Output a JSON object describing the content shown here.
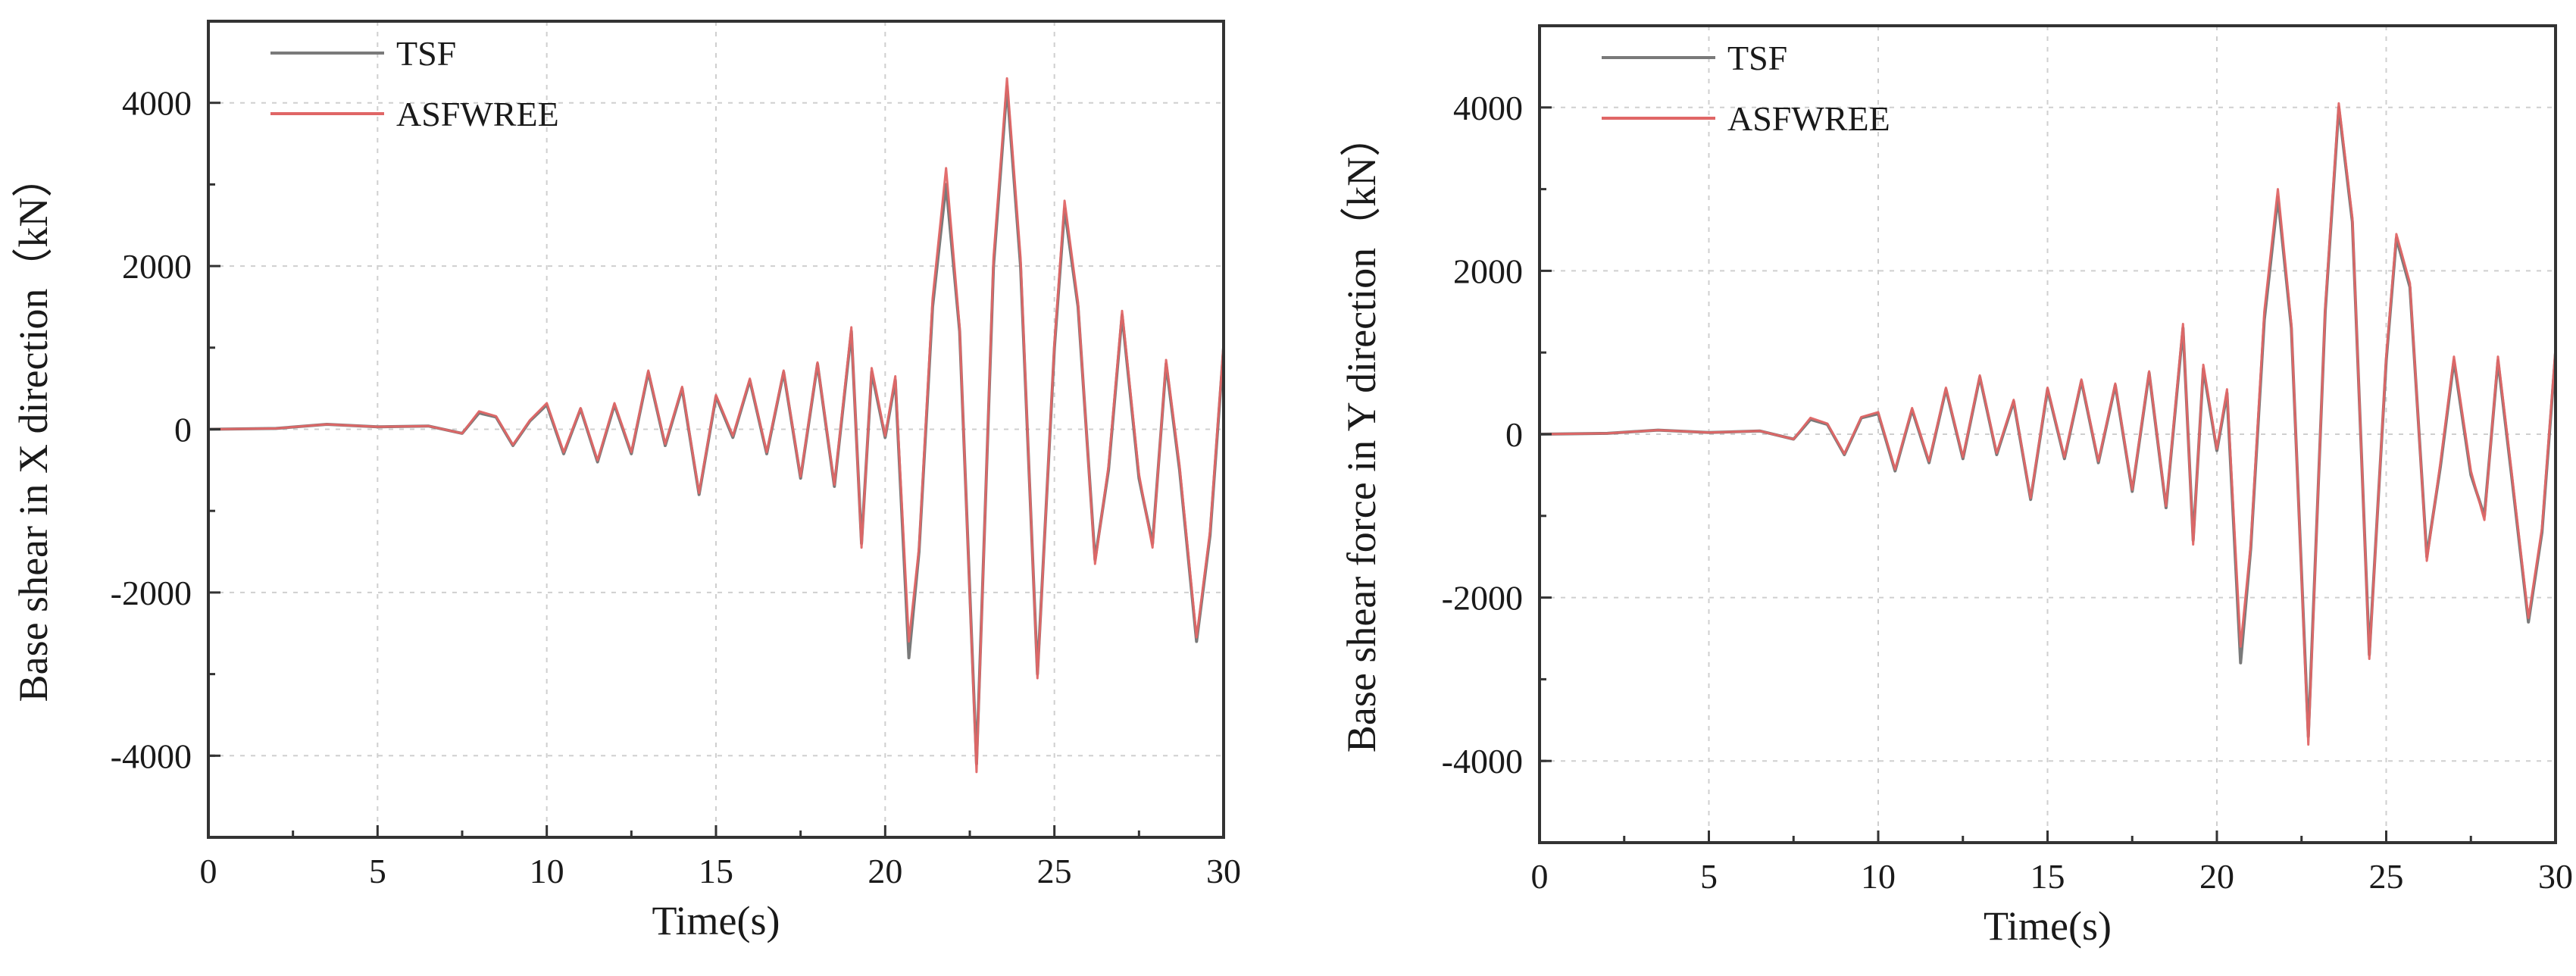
{
  "chart_data": [
    {
      "type": "line",
      "xlabel": "Time(s)",
      "ylabel": "Base shear in X direction（kN）",
      "xlim": [
        0,
        30
      ],
      "ylim": [
        -5000,
        5000
      ],
      "x_ticks": [
        "0",
        "5",
        "10",
        "15",
        "20",
        "25",
        "30"
      ],
      "y_ticks": [
        "-4000",
        "-2000",
        "0",
        "2000",
        "4000"
      ],
      "legend_position": "top-left",
      "grid": true,
      "series": [
        {
          "name": "TSF",
          "color": "#7a7a7a",
          "x": [
            0,
            2,
            3.5,
            5,
            6.5,
            7.5,
            8,
            8.5,
            9,
            9.5,
            10,
            10.5,
            11,
            11.5,
            12,
            12.5,
            13,
            13.5,
            14,
            14.5,
            15,
            15.5,
            16,
            16.5,
            17,
            17.5,
            18,
            18.5,
            19,
            19.3,
            19.6,
            20,
            20.3,
            20.7,
            21,
            21.4,
            21.8,
            22.2,
            22.7,
            23.2,
            23.6,
            24,
            24.5,
            25,
            25.3,
            25.7,
            26.2,
            26.6,
            27,
            27.5,
            27.9,
            28.3,
            28.7,
            29.2,
            29.6,
            30
          ],
          "y": [
            0,
            10,
            60,
            30,
            40,
            -50,
            200,
            150,
            -200,
            100,
            300,
            -300,
            250,
            -400,
            300,
            -300,
            700,
            -200,
            500,
            -800,
            400,
            -100,
            600,
            -300,
            700,
            -600,
            800,
            -700,
            1200,
            -1400,
            700,
            -100,
            600,
            -2800,
            -1500,
            1500,
            3000,
            1200,
            -4100,
            2000,
            4200,
            2000,
            -3000,
            1000,
            2700,
            1500,
            -1600,
            -500,
            1400,
            -600,
            -1400,
            800,
            -500,
            -2600,
            -1300,
            1000
          ]
        },
        {
          "name": "ASFWREE",
          "color": "#e06666",
          "x": [
            0,
            2,
            3.5,
            5,
            6.5,
            7.5,
            8,
            8.5,
            9,
            9.5,
            10,
            10.5,
            11,
            11.5,
            12,
            12.5,
            13,
            13.5,
            14,
            14.5,
            15,
            15.5,
            16,
            16.5,
            17,
            17.5,
            18,
            18.5,
            19,
            19.3,
            19.6,
            20,
            20.3,
            20.7,
            21,
            21.4,
            21.8,
            22.2,
            22.7,
            23.2,
            23.6,
            24,
            24.5,
            25,
            25.3,
            25.7,
            26.2,
            26.6,
            27,
            27.5,
            27.9,
            28.3,
            28.7,
            29.2,
            29.6,
            30
          ],
          "y": [
            0,
            10,
            60,
            30,
            40,
            -50,
            220,
            160,
            -190,
            110,
            320,
            -280,
            260,
            -380,
            320,
            -280,
            720,
            -180,
            520,
            -780,
            420,
            -80,
            620,
            -280,
            720,
            -580,
            820,
            -680,
            1250,
            -1450,
            750,
            -80,
            650,
            -2600,
            -1450,
            1600,
            3200,
            1250,
            -4200,
            2100,
            4300,
            2100,
            -3050,
            1050,
            2800,
            1550,
            -1650,
            -450,
            1450,
            -550,
            -1450,
            850,
            -450,
            -2550,
            -1250,
            1050
          ]
        }
      ]
    },
    {
      "type": "line",
      "xlabel": "Time(s)",
      "ylabel": "Base shear force in Y direction（kN）",
      "xlim": [
        0,
        30
      ],
      "ylim": [
        -5000,
        5000
      ],
      "x_ticks": [
        "0",
        "5",
        "10",
        "15",
        "20",
        "25",
        "30"
      ],
      "y_ticks": [
        "-4000",
        "-2000",
        "0",
        "2000",
        "4000"
      ],
      "legend_position": "top-left",
      "grid": true,
      "series": [
        {
          "name": "TSF",
          "color": "#7a7a7a",
          "x": [
            0,
            2,
            3.5,
            5,
            6.5,
            7.5,
            8,
            8.5,
            9,
            9.5,
            10,
            10.5,
            11,
            11.5,
            12,
            12.5,
            13,
            13.5,
            14,
            14.5,
            15,
            15.5,
            16,
            16.5,
            17,
            17.5,
            18,
            18.5,
            19,
            19.3,
            19.6,
            20,
            20.3,
            20.7,
            21,
            21.4,
            21.8,
            22.2,
            22.7,
            23.2,
            23.6,
            24,
            24.5,
            25,
            25.3,
            25.7,
            26.2,
            26.6,
            27,
            27.5,
            27.9,
            28.3,
            28.7,
            29.2,
            29.6,
            30
          ],
          "y": [
            0,
            10,
            50,
            20,
            40,
            -60,
            180,
            120,
            -250,
            200,
            250,
            -450,
            300,
            -350,
            550,
            -300,
            700,
            -250,
            400,
            -800,
            550,
            -300,
            650,
            -350,
            600,
            -700,
            750,
            -900,
            1300,
            -1300,
            800,
            -200,
            500,
            -2800,
            -1400,
            1400,
            2900,
            1300,
            -3700,
            1500,
            4000,
            2600,
            -2700,
            900,
            2400,
            1800,
            -1500,
            -400,
            900,
            -500,
            -1000,
            900,
            -500,
            -2300,
            -1200,
            1000
          ]
        },
        {
          "name": "ASFWREE",
          "color": "#e06666",
          "x": [
            0,
            2,
            3.5,
            5,
            6.5,
            7.5,
            8,
            8.5,
            9,
            9.5,
            10,
            10.5,
            11,
            11.5,
            12,
            12.5,
            13,
            13.5,
            14,
            14.5,
            15,
            15.5,
            16,
            16.5,
            17,
            17.5,
            18,
            18.5,
            19,
            19.3,
            19.6,
            20,
            20.3,
            20.7,
            21,
            21.4,
            21.8,
            22.2,
            22.7,
            23.2,
            23.6,
            24,
            24.5,
            25,
            25.3,
            25.7,
            26.2,
            26.6,
            27,
            27.5,
            27.9,
            28.3,
            28.7,
            29.2,
            29.6,
            30
          ],
          "y": [
            0,
            10,
            50,
            20,
            40,
            -60,
            200,
            130,
            -240,
            210,
            270,
            -430,
            320,
            -330,
            570,
            -280,
            720,
            -230,
            420,
            -780,
            570,
            -280,
            670,
            -330,
            620,
            -680,
            770,
            -880,
            1350,
            -1350,
            850,
            -180,
            550,
            -2600,
            -1350,
            1500,
            3000,
            1350,
            -3800,
            1550,
            4050,
            2650,
            -2750,
            950,
            2450,
            1850,
            -1550,
            -350,
            950,
            -450,
            -1050,
            950,
            -450,
            -2250,
            -1150,
            1050
          ]
        }
      ]
    }
  ]
}
